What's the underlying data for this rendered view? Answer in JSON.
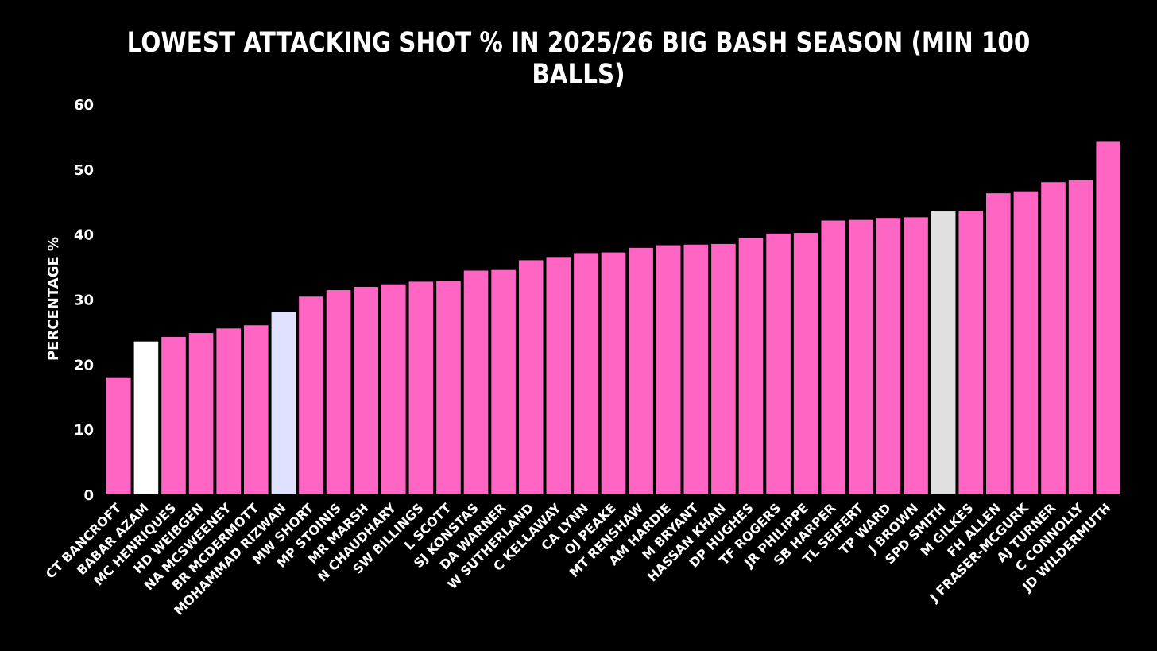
{
  "chart_data": {
    "type": "bar",
    "title": "LOWEST ATTACKING SHOT % IN 2025/26 BIG BASH SEASON (MIN 100 BALLS)",
    "xlabel": "",
    "ylabel": "PERCENTAGE %",
    "ylim": [
      0,
      60
    ],
    "yticks": [
      "0",
      "10",
      "20",
      "30",
      "40",
      "50",
      "60"
    ],
    "grid": false,
    "categories": [
      "CT BANCROFT",
      "BABAR AZAM",
      "MC HENRIQUES",
      "HD WEIBGEN",
      "NA MCSWEENEY",
      "BR MCDERMOTT",
      "MOHAMMAD RIZWAN",
      "MW SHORT",
      "MP STOINIS",
      "MR MARSH",
      "N CHAUDHARY",
      "SW BILLINGS",
      "L SCOTT",
      "SJ KONSTAS",
      "DA WARNER",
      "W SUTHERLAND",
      "C KELLAWAY",
      "CA LYNN",
      "OJ PEAKE",
      "MT RENSHAW",
      "AM HARDIE",
      "M BRYANT",
      "HASSAN KHAN",
      "DP HUGHES",
      "TF ROGERS",
      "JR PHILIPPE",
      "SB HARPER",
      "TL SEIFERT",
      "TP WARD",
      "J BROWN",
      "SPD SMITH",
      "M GILKES",
      "FH ALLEN",
      "J FRASER-MCGURK",
      "AJ TURNER",
      "C CONNOLLY",
      "JD WILDERMUTH"
    ],
    "values": [
      18.0,
      23.5,
      24.2,
      24.8,
      25.5,
      26.0,
      28.1,
      30.4,
      31.4,
      31.9,
      32.3,
      32.7,
      32.8,
      34.4,
      34.5,
      36.0,
      36.5,
      37.1,
      37.2,
      37.9,
      38.3,
      38.4,
      38.5,
      39.4,
      40.1,
      40.2,
      42.1,
      42.2,
      42.5,
      42.6,
      43.5,
      43.6,
      46.3,
      46.6,
      48.0,
      48.3,
      54.2
    ],
    "bar_colors": [
      "#ff66c4",
      "#ffffff",
      "#ff66c4",
      "#ff66c4",
      "#ff66c4",
      "#ff66c4",
      "#e0e0ff",
      "#ff66c4",
      "#ff66c4",
      "#ff66c4",
      "#ff66c4",
      "#ff66c4",
      "#ff66c4",
      "#ff66c4",
      "#ff66c4",
      "#ff66c4",
      "#ff66c4",
      "#ff66c4",
      "#ff66c4",
      "#ff66c4",
      "#ff66c4",
      "#ff66c4",
      "#ff66c4",
      "#ff66c4",
      "#ff66c4",
      "#ff66c4",
      "#ff66c4",
      "#ff66c4",
      "#ff66c4",
      "#ff66c4",
      "#e0e0e0",
      "#ff66c4",
      "#ff66c4",
      "#ff66c4",
      "#ff66c4",
      "#ff66c4",
      "#ff66c4"
    ],
    "background_color": "#000000",
    "text_color": "#ffffff"
  }
}
